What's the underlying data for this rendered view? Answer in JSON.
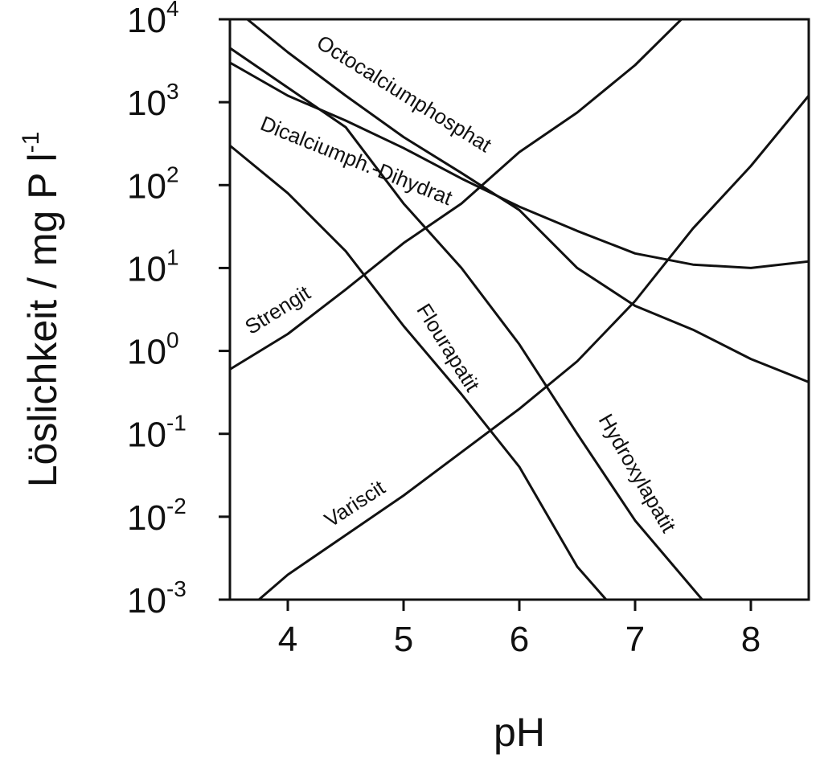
{
  "chart_data": {
    "type": "line",
    "title": "",
    "xlabel": "pH",
    "ylabel": "Löslichkeit  /  mg P l",
    "ylabel_exponent": "-1",
    "y_scale": "log",
    "xlim": [
      3.5,
      8.5
    ],
    "ylim": [
      0.001,
      10000
    ],
    "grid": false,
    "legend": "none (curves labelled inline)",
    "x_ticks": [
      "4",
      "5",
      "6",
      "7",
      "8"
    ],
    "y_ticks": [
      {
        "value": 0.001,
        "base": "10",
        "exp": "-3"
      },
      {
        "value": 0.01,
        "base": "10",
        "exp": "-2"
      },
      {
        "value": 0.1,
        "base": "10",
        "exp": "-1"
      },
      {
        "value": 1,
        "base": "10",
        "exp": "0"
      },
      {
        "value": 10,
        "base": "10",
        "exp": "1"
      },
      {
        "value": 100,
        "base": "10",
        "exp": "2"
      },
      {
        "value": 1000,
        "base": "10",
        "exp": "3"
      },
      {
        "value": 10000,
        "base": "10",
        "exp": "4"
      }
    ],
    "line_color": "#111111",
    "series": [
      {
        "name": "Octocalciumphosphat",
        "points": [
          [
            3.65,
            10000
          ],
          [
            4.0,
            4000
          ],
          [
            4.5,
            1200
          ],
          [
            5.0,
            380
          ],
          [
            5.5,
            140
          ],
          [
            6.0,
            50
          ],
          [
            6.5,
            10
          ],
          [
            7.0,
            3.5
          ],
          [
            7.5,
            1.8
          ],
          [
            8.0,
            0.8
          ],
          [
            8.5,
            0.42
          ]
        ]
      },
      {
        "name": "Dicalciumph.-Dihydrat",
        "points": [
          [
            3.5,
            3000
          ],
          [
            4.0,
            1200
          ],
          [
            4.5,
            600
          ],
          [
            5.0,
            280
          ],
          [
            5.5,
            120
          ],
          [
            6.0,
            55
          ],
          [
            6.5,
            28
          ],
          [
            7.0,
            15
          ],
          [
            7.5,
            11
          ],
          [
            8.0,
            10
          ],
          [
            8.5,
            12
          ]
        ]
      },
      {
        "name": "Strengit",
        "points": [
          [
            3.5,
            0.6
          ],
          [
            4.0,
            1.6
          ],
          [
            4.5,
            5.5
          ],
          [
            5.0,
            20
          ],
          [
            5.5,
            60
          ],
          [
            6.0,
            250
          ],
          [
            6.5,
            750
          ],
          [
            7.0,
            2800
          ],
          [
            7.4,
            10000
          ]
        ]
      },
      {
        "name": "Variscit",
        "points": [
          [
            3.75,
            0.001
          ],
          [
            4.0,
            0.002
          ],
          [
            4.5,
            0.006
          ],
          [
            5.0,
            0.018
          ],
          [
            5.5,
            0.06
          ],
          [
            6.0,
            0.2
          ],
          [
            6.5,
            0.75
          ],
          [
            7.0,
            4
          ],
          [
            7.5,
            30
          ],
          [
            8.0,
            170
          ],
          [
            8.5,
            1200
          ]
        ]
      },
      {
        "name": "Flourapatit",
        "points": [
          [
            3.5,
            300
          ],
          [
            4.0,
            80
          ],
          [
            4.5,
            16
          ],
          [
            5.0,
            2
          ],
          [
            5.5,
            0.3
          ],
          [
            6.0,
            0.04
          ],
          [
            6.5,
            0.0025
          ],
          [
            6.75,
            0.001
          ]
        ]
      },
      {
        "name": "Hydroxylapatit",
        "points": [
          [
            3.5,
            4500
          ],
          [
            4.0,
            1500
          ],
          [
            4.5,
            500
          ],
          [
            5.0,
            60
          ],
          [
            5.5,
            10
          ],
          [
            6.0,
            1.2
          ],
          [
            6.5,
            0.1
          ],
          [
            7.0,
            0.009
          ],
          [
            7.58,
            0.001
          ]
        ]
      }
    ],
    "annotations": [
      {
        "text": "Octocalciumphosphat",
        "series": "Octocalciumphosphat"
      },
      {
        "text": "Dicalciumph.-Dihydrat",
        "series": "Dicalciumph.-Dihydrat"
      },
      {
        "text": "Strengit",
        "series": "Strengit"
      },
      {
        "text": "Variscit",
        "series": "Variscit"
      },
      {
        "text": "Flourapatit",
        "series": "Flourapatit"
      },
      {
        "text": "Hydroxylapatit",
        "series": "Hydroxylapatit"
      }
    ]
  }
}
